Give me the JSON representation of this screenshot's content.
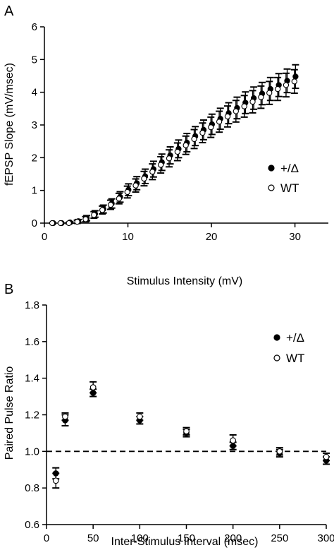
{
  "chart_data": [
    {
      "type": "scatter",
      "panel_label": "A",
      "xlabel": "Stimulus Intensity (mV)",
      "ylabel": "fEPSP Slope (mV/msec)",
      "xlim": [
        0,
        34
      ],
      "ylim": [
        0,
        6
      ],
      "xticks": [
        "0",
        "10",
        "20",
        "30"
      ],
      "yticks": [
        "0",
        "1",
        "2",
        "3",
        "4",
        "5",
        "6"
      ],
      "xtick_values": [
        0,
        10,
        20,
        30
      ],
      "ytick_values": [
        0,
        1,
        2,
        3,
        4,
        5,
        6
      ],
      "grid": false,
      "legend_position": "right",
      "series": [
        {
          "name": "+/Δ",
          "marker": "filled-circle",
          "color": "#000000",
          "x": [
            1,
            2,
            3,
            4,
            5,
            6,
            7,
            8,
            9,
            10,
            11,
            12,
            13,
            14,
            15,
            16,
            17,
            18,
            19,
            20,
            21,
            22,
            23,
            24,
            25,
            26,
            27,
            28,
            29,
            30
          ],
          "y": [
            0,
            0,
            0.02,
            0.06,
            0.15,
            0.28,
            0.43,
            0.6,
            0.8,
            1.02,
            1.22,
            1.43,
            1.65,
            1.86,
            2.07,
            2.27,
            2.46,
            2.66,
            2.85,
            3.02,
            3.19,
            3.36,
            3.52,
            3.68,
            3.82,
            3.96,
            4.1,
            4.22,
            4.35,
            4.48
          ],
          "err": [
            0,
            0,
            0.02,
            0.05,
            0.08,
            0.1,
            0.12,
            0.14,
            0.16,
            0.18,
            0.2,
            0.22,
            0.24,
            0.25,
            0.26,
            0.27,
            0.28,
            0.29,
            0.3,
            0.31,
            0.32,
            0.32,
            0.33,
            0.33,
            0.34,
            0.34,
            0.35,
            0.35,
            0.36,
            0.36
          ]
        },
        {
          "name": "WT",
          "marker": "open-circle",
          "color": "#000000",
          "x": [
            1,
            2,
            3,
            4,
            5,
            6,
            7,
            8,
            9,
            10,
            11,
            12,
            13,
            14,
            15,
            16,
            17,
            18,
            19,
            20,
            21,
            22,
            23,
            24,
            25,
            26,
            27,
            28,
            29,
            30
          ],
          "y": [
            0,
            0,
            0,
            0.04,
            0.12,
            0.25,
            0.4,
            0.56,
            0.75,
            0.95,
            1.15,
            1.36,
            1.57,
            1.78,
            1.98,
            2.18,
            2.38,
            2.57,
            2.76,
            2.93,
            3.1,
            3.26,
            3.42,
            3.57,
            3.71,
            3.85,
            3.98,
            4.1,
            4.22,
            4.33
          ],
          "err": [
            0,
            0,
            0.02,
            0.05,
            0.08,
            0.1,
            0.12,
            0.14,
            0.16,
            0.18,
            0.2,
            0.22,
            0.24,
            0.25,
            0.26,
            0.27,
            0.28,
            0.29,
            0.3,
            0.31,
            0.32,
            0.32,
            0.33,
            0.33,
            0.34,
            0.34,
            0.35,
            0.35,
            0.36,
            0.36
          ]
        }
      ]
    },
    {
      "type": "scatter",
      "panel_label": "B",
      "xlabel": "Inter-Stimulus Interval (msec)",
      "ylabel": "Paired Pulse Ratio",
      "xlim": [
        0,
        300
      ],
      "ylim": [
        0.6,
        1.8
      ],
      "xticks": [
        "0",
        "50",
        "100",
        "150",
        "200",
        "250",
        "300"
      ],
      "yticks": [
        "0.6",
        "0.8",
        "1.0",
        "1.2",
        "1.4",
        "1.6",
        "1.8"
      ],
      "xtick_values": [
        0,
        50,
        100,
        150,
        200,
        250,
        300
      ],
      "ytick_values": [
        0.6,
        0.8,
        1.0,
        1.2,
        1.4,
        1.6,
        1.8
      ],
      "reference_line": 1.0,
      "grid": false,
      "legend_position": "top-right",
      "series": [
        {
          "name": "+/Δ",
          "marker": "filled-circle",
          "color": "#000000",
          "x": [
            10,
            20,
            50,
            100,
            150,
            200,
            250,
            300
          ],
          "y": [
            0.88,
            1.17,
            1.32,
            1.17,
            1.1,
            1.03,
            0.99,
            0.95
          ],
          "err": [
            0.03,
            0.03,
            0.02,
            0.02,
            0.02,
            0.02,
            0.02,
            0.02
          ]
        },
        {
          "name": "WT",
          "marker": "open-circle",
          "color": "#000000",
          "x": [
            10,
            20,
            50,
            100,
            150,
            200,
            250,
            300
          ],
          "y": [
            0.84,
            1.19,
            1.35,
            1.19,
            1.11,
            1.06,
            1.0,
            0.97
          ],
          "err": [
            0.04,
            0.02,
            0.03,
            0.02,
            0.02,
            0.03,
            0.02,
            0.02
          ]
        }
      ]
    }
  ]
}
